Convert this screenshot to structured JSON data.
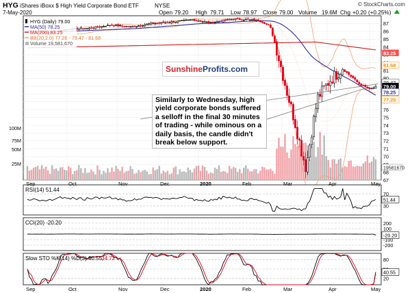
{
  "header": {
    "symbol": "HYG",
    "name": "iShares iBoxx $ High Yield Corporate Bond ETF",
    "exchange": "NYSE",
    "copyright": "© StockCharts.com",
    "date": "7-May-2020",
    "quote": {
      "open_label": "Open",
      "open": "79.20",
      "high_label": "High",
      "high": "79.71",
      "low_label": "Low",
      "low": "78.97",
      "close_label": "Close",
      "close": "79.00",
      "volume_label": "Volume",
      "volume": "19.6M",
      "chg_label": "Chg",
      "chg": "+0.20 (+0.25%)"
    }
  },
  "legend": {
    "main": "HYG (Daily) 79.00",
    "ma50": "MA(50) 78.25",
    "ma200": "MA(200) 83.25",
    "bb_label": "BB(20,2.0) 77.26 - 79.47 - 81.68",
    "volume": "Volume 19,581,670",
    "rsi": "RSI(14) 51.44",
    "cci": "CCI(20) -20.20",
    "sto_label": "Slow STO %K(14) %D(3) 40.55,",
    "sto_d": "34.72"
  },
  "logo": {
    "part1": "Sunshine",
    "part2": "Profits.com"
  },
  "annotation": "Similarly to Wednesday, high yield corporate bonds suffered a selloff in the final 30 minutes of trading - while ominous on a daily basis, the candle didn't break below support.",
  "x_labels": [
    "Sep",
    "Oct",
    "Nov",
    "Dec",
    "2020",
    "Feb",
    "Mar",
    "Apr",
    "May"
  ],
  "colors": {
    "up_candle": "#000000",
    "down_candle": "#e0001b",
    "ma50": "#2b2b9a",
    "ma200": "#d31a1a",
    "bb": "#f0a070",
    "volume_up": "#b8b8b8",
    "volume_down": "#f2a2a8",
    "rsi_line": "#000000",
    "cci_fill": "#4a7a4a",
    "cci_fill_neg": "#8a3a3a",
    "sto_k": "#000000",
    "sto_d": "#e0001b",
    "price_tag": "#000000",
    "ma200_tag": "#ff4b4b",
    "bb_tag": "#ff8c00"
  },
  "chart_data": [
    {
      "type": "candlestick",
      "title": "HYG iShares iBoxx $ High Yield Corporate Bond ETF NYSE",
      "ylim": [
        67,
        88
      ],
      "yticks": [
        67,
        68,
        69,
        70,
        71,
        72,
        73,
        74,
        75,
        76,
        77,
        78,
        79,
        80,
        81,
        82,
        83,
        84,
        85,
        86,
        87
      ],
      "price_tags": {
        "ma200": "83.25",
        "bb_upper": "81.68",
        "close": "79.00",
        "bb_mid": "79.47",
        "ma50": "78.25",
        "bb_lower": "77.26"
      },
      "approx_series_month_marks": {
        "Sep": 86.1,
        "Oct": 86.3,
        "Nov": 86.8,
        "Dec": 87.0,
        "2020": 87.5,
        "Feb": 87.6,
        "Mar": 84.0,
        "Mar_low": 68.5,
        "Apr": 78.5,
        "May": 79.0
      }
    },
    {
      "type": "bar",
      "title": "Volume",
      "yticks_labels": [
        "25M",
        "50M",
        "75M",
        "100M"
      ],
      "last_value": "19581670"
    },
    {
      "type": "line",
      "title": "RSI(14)",
      "yticks": [
        70,
        30
      ],
      "last_value": 51.44
    },
    {
      "type": "line",
      "title": "CCI(20)",
      "yticks": [
        200,
        100,
        0,
        -100,
        -200
      ],
      "last_value": -20.2
    },
    {
      "type": "line",
      "title": "Slow STO %K(14) %D(3)",
      "yticks": [
        80,
        50,
        20
      ],
      "k_last": 40.55,
      "d_last": 34.72
    }
  ]
}
